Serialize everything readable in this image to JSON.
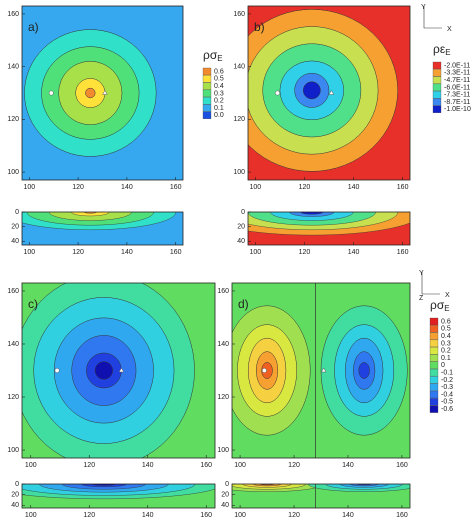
{
  "panels": [
    {
      "label": "a)",
      "xlim": [
        97,
        163
      ],
      "ylim": [
        97,
        163
      ],
      "xticks": [
        100,
        120,
        140,
        160
      ],
      "yticks": [
        100,
        120,
        140,
        160
      ],
      "strip_ylim": [
        0,
        45
      ],
      "strip_yticks": [
        0,
        20,
        40
      ],
      "colorbar": {
        "title": "ρσ",
        "subscript": "E",
        "levels": [
          0.6,
          0.5,
          0.4,
          0.3,
          0.2,
          0.1,
          {
            "value": 0,
            "label": "0.0"
          }
        ],
        "colors": [
          "#f28a30",
          "#ffe13a",
          "#a8e04a",
          "#4fe07a",
          "#30e0c8",
          "#35a8f0",
          "#1a50e0"
        ]
      }
    },
    {
      "label": "b)",
      "xlim": [
        97,
        163
      ],
      "ylim": [
        97,
        163
      ],
      "xticks": [
        100,
        120,
        140,
        160
      ],
      "yticks": [
        100,
        120,
        140,
        160
      ],
      "strip_ylim": [
        0,
        45
      ],
      "strip_yticks": [
        0,
        20,
        40
      ],
      "axis_names": [
        "Y",
        "X"
      ],
      "colorbar": {
        "title": "ρε",
        "subscript": "E",
        "levels": [
          {
            "value": -2e-11,
            "label": "-2.0E-11"
          },
          {
            "value": -3.3e-11,
            "label": "-3.3E-11"
          },
          {
            "value": -4.7e-11,
            "label": "-4.7E-11"
          },
          {
            "value": -6e-11,
            "label": "-6.0E-11"
          },
          {
            "value": -7.3e-11,
            "label": "-7.3E-11"
          },
          {
            "value": -8.7e-11,
            "label": "-8.7E-11"
          },
          {
            "value": -1e-10,
            "label": "-1.0E-10"
          }
        ],
        "colors": [
          "#e8302a",
          "#f5a030",
          "#c8e050",
          "#50e08a",
          "#30d0e8",
          "#3a88f0",
          "#1020c8"
        ]
      }
    },
    {
      "label": "c)",
      "xlim": [
        97,
        163
      ],
      "ylim": [
        97,
        163
      ],
      "xticks": [
        100,
        120,
        140,
        160
      ],
      "yticks": [
        100,
        120,
        140,
        160
      ],
      "strip_ylim": [
        0,
        45
      ],
      "strip_yticks": [
        0,
        20,
        40
      ]
    },
    {
      "label": "d)",
      "xlim": [
        97,
        163
      ],
      "ylim": [
        97,
        163
      ],
      "xticks": [
        100,
        120,
        140,
        160
      ],
      "yticks": [
        100,
        120,
        140,
        160
      ],
      "strip_ylim": [
        0,
        45
      ],
      "strip_yticks": [
        0,
        20,
        40
      ],
      "axis_names": [
        "Y",
        "Z",
        "X"
      ],
      "colorbar": {
        "title": "ρσ",
        "subscript": "E",
        "levels": [
          0.6,
          0.5,
          0.4,
          0.3,
          0.2,
          0.1,
          0,
          -0.1,
          -0.2,
          -0.3,
          -0.4,
          -0.5,
          -0.6
        ],
        "colors": [
          "#e02020",
          "#f06020",
          "#f5a030",
          "#f5d040",
          "#d8e840",
          "#a0e050",
          "#60dc60",
          "#40dca0",
          "#30d0e0",
          "#30a8f0",
          "#3078f0",
          "#2040e0",
          "#1010b0"
        ]
      }
    }
  ]
}
